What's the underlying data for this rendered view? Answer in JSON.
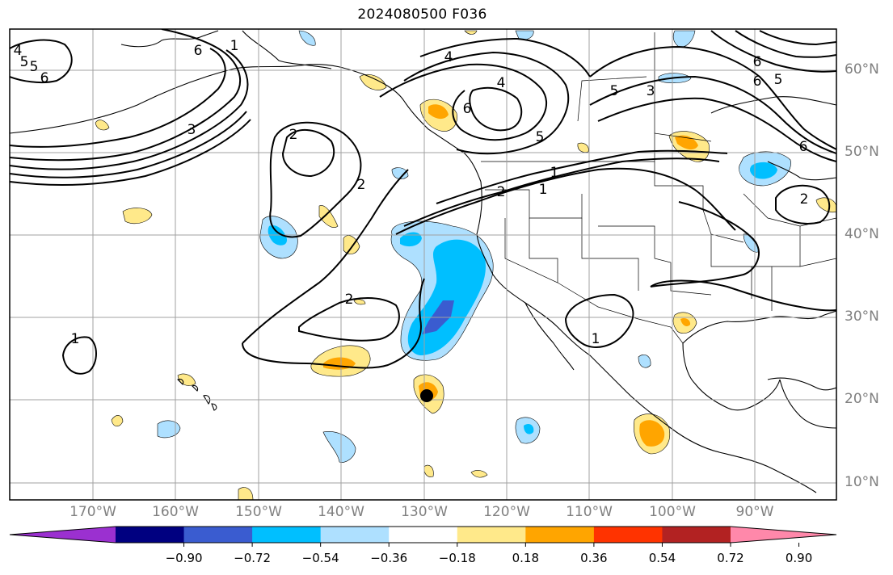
{
  "title": "2024080500 F036",
  "map": {
    "extent_lon": [
      -180,
      -80
    ],
    "extent_lat": [
      8,
      65
    ],
    "lat_labels": [
      "60°N",
      "50°N",
      "40°N",
      "30°N",
      "20°N",
      "10°N"
    ],
    "lon_labels": [
      "170°W",
      "160°W",
      "150°W",
      "140°W",
      "130°W",
      "120°W",
      "110°W",
      "100°W",
      "90°W"
    ],
    "grid": true,
    "contour_color": "#000000",
    "contour_labels": [
      "5",
      "6",
      "4",
      "5",
      "6",
      "3",
      "2",
      "2",
      "2",
      "1",
      "1",
      "4",
      "6",
      "5",
      "5",
      "4",
      "1",
      "2",
      "3",
      "6",
      "6",
      "5",
      "6",
      "1",
      "2",
      "1"
    ]
  },
  "colorbar": {
    "colors": [
      "#9b30d0",
      "#000080",
      "#3a5cd0",
      "#00bfff",
      "#aee0ff",
      "#ffffff",
      "#ffe98a",
      "#ffa500",
      "#ff3300",
      "#b22222",
      "#ff88aa"
    ],
    "tick_labels": [
      "−0.90",
      "−0.72",
      "−0.54",
      "−0.36",
      "−0.18",
      "0.18",
      "0.36",
      "0.54",
      "0.72",
      "0.90"
    ]
  }
}
